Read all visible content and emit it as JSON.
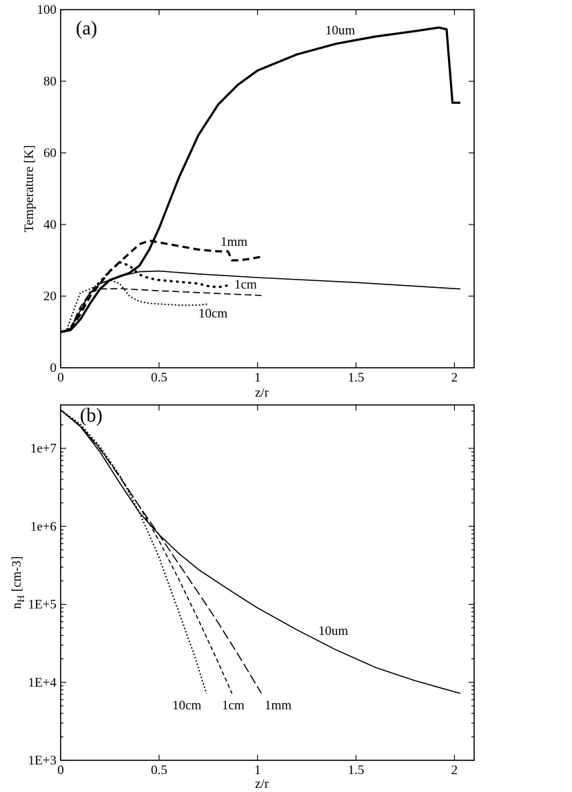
{
  "chart_data": [
    {
      "panel_label": "(a)",
      "type": "line",
      "xlabel": "z/r",
      "ylabel": "Temperature [K]",
      "xlim": [
        0,
        2.1
      ],
      "ylim": [
        0,
        100
      ],
      "x_ticks": [
        0,
        0.5,
        1,
        1.5,
        2
      ],
      "x_tick_labels": [
        "0",
        "0.5",
        "1",
        "1.5",
        "2"
      ],
      "y_ticks": [
        0,
        20,
        40,
        60,
        80,
        100
      ],
      "y_tick_labels": [
        "0",
        "20",
        "40",
        "60",
        "80",
        "100"
      ],
      "series": [
        {
          "name": "10um",
          "label": "10um",
          "style": "solid-thick",
          "x": [
            0,
            0.05,
            0.1,
            0.15,
            0.2,
            0.25,
            0.3,
            0.35,
            0.4,
            0.45,
            0.5,
            0.55,
            0.6,
            0.7,
            0.8,
            0.9,
            1.0,
            1.2,
            1.4,
            1.6,
            1.8,
            1.92,
            1.96,
            1.99,
            2.03
          ],
          "y": [
            10,
            10.5,
            13.5,
            18,
            22,
            24.5,
            25.5,
            26.5,
            28.5,
            33,
            39,
            46,
            53,
            65,
            73.5,
            79,
            83,
            87.5,
            90.5,
            92.5,
            94,
            95,
            94.5,
            74,
            74
          ]
        },
        {
          "name": "1mm",
          "label": "1mm",
          "style": "dash-thick",
          "x": [
            0,
            0.05,
            0.1,
            0.15,
            0.2,
            0.25,
            0.3,
            0.35,
            0.4,
            0.45,
            0.5,
            0.6,
            0.7,
            0.8,
            0.85,
            0.87,
            0.9,
            0.95,
            1.02
          ],
          "y": [
            10,
            10.5,
            15,
            20,
            23.5,
            27,
            29.5,
            32,
            34.5,
            35.5,
            35,
            34,
            33,
            32.5,
            32.5,
            30,
            30,
            30.3,
            31
          ]
        },
        {
          "name": "1cm",
          "label": "1cm",
          "style": "dot-thick",
          "x": [
            0,
            0.05,
            0.1,
            0.15,
            0.2,
            0.25,
            0.3,
            0.35,
            0.4,
            0.45,
            0.5,
            0.6,
            0.7,
            0.75,
            0.8,
            0.85
          ],
          "y": [
            10,
            11,
            16,
            21,
            24,
            27,
            29.5,
            28.5,
            26,
            25,
            24.5,
            24,
            23.5,
            22.8,
            22.5,
            23
          ]
        },
        {
          "name": "10cm",
          "label": "10cm",
          "style": "dotted",
          "x": [
            0,
            0.03,
            0.06,
            0.1,
            0.15,
            0.2,
            0.25,
            0.3,
            0.35,
            0.4,
            0.45,
            0.5,
            0.6,
            0.7,
            0.75
          ],
          "y": [
            10,
            10.5,
            15,
            21,
            22,
            23.5,
            24.5,
            23.5,
            20,
            18.5,
            18,
            17.8,
            17.5,
            17.5,
            17.8
          ]
        },
        {
          "name": "10um-thin",
          "label": "",
          "style": "solid-thin",
          "x": [
            0,
            0.05,
            0.1,
            0.15,
            0.2,
            0.3,
            0.4,
            0.5,
            0.7,
            1.0,
            1.5,
            2.03
          ],
          "y": [
            10,
            11,
            16,
            21,
            23.5,
            25.5,
            26.8,
            27,
            26.2,
            25.2,
            23.8,
            22
          ]
        },
        {
          "name": "dashed-thin",
          "label": "",
          "style": "dash-thin",
          "x": [
            0,
            0.05,
            0.1,
            0.15,
            0.2,
            0.3,
            0.5,
            0.7,
            1.02
          ],
          "y": [
            10,
            11,
            17,
            21,
            22,
            22.1,
            21.5,
            21,
            20.2
          ]
        }
      ]
    },
    {
      "panel_label": "(b)",
      "type": "line",
      "scale_y": "log",
      "xlabel": "z/r",
      "ylabel_main": "n",
      "ylabel_sub": "H",
      "ylabel_unit": " [cm-3]",
      "xlim": [
        0,
        2.1
      ],
      "ylim": [
        1000,
        36000000
      ],
      "x_ticks": [
        0,
        0.5,
        1,
        1.5,
        2
      ],
      "x_tick_labels": [
        "0",
        "0.5",
        "1",
        "1.5",
        "2"
      ],
      "y_ticks": [
        1000,
        10000,
        100000,
        1000000,
        10000000
      ],
      "y_tick_labels": [
        "1E+3",
        "1E+4",
        "1E+5",
        "1e+6",
        "1e+7"
      ],
      "series": [
        {
          "name": "10um",
          "label": "10um",
          "style": "solid",
          "x": [
            0,
            0.1,
            0.2,
            0.3,
            0.4,
            0.5,
            0.6,
            0.7,
            0.8,
            0.9,
            1.0,
            1.2,
            1.4,
            1.6,
            1.8,
            2.03
          ],
          "y": [
            31000000,
            19000000,
            9000000,
            3600000,
            1500000,
            780000,
            450000,
            280000,
            190000,
            130000,
            90000,
            47000,
            26000,
            15500,
            10500,
            7200
          ]
        },
        {
          "name": "1mm",
          "label": "1mm",
          "style": "long-dash",
          "x": [
            0,
            0.1,
            0.2,
            0.3,
            0.4,
            0.5,
            0.6,
            0.7,
            0.8,
            0.9,
            1.02
          ],
          "y": [
            31000000,
            19500000,
            9800000,
            4300000,
            1800000,
            780000,
            330000,
            140000,
            58000,
            23000,
            7200
          ]
        },
        {
          "name": "1cm",
          "label": "1cm",
          "style": "short-dash",
          "x": [
            0,
            0.1,
            0.2,
            0.3,
            0.4,
            0.5,
            0.6,
            0.7,
            0.8,
            0.87
          ],
          "y": [
            31000000,
            19500000,
            10000000,
            4400000,
            1800000,
            650000,
            210000,
            63000,
            18000,
            7200
          ]
        },
        {
          "name": "10cm",
          "label": "10cm",
          "style": "dotted",
          "x": [
            0,
            0.1,
            0.2,
            0.3,
            0.4,
            0.5,
            0.6,
            0.68,
            0.74
          ],
          "y": [
            31000000,
            20500000,
            10500000,
            4500000,
            1500000,
            400000,
            80000,
            22000,
            7200
          ]
        }
      ]
    }
  ]
}
